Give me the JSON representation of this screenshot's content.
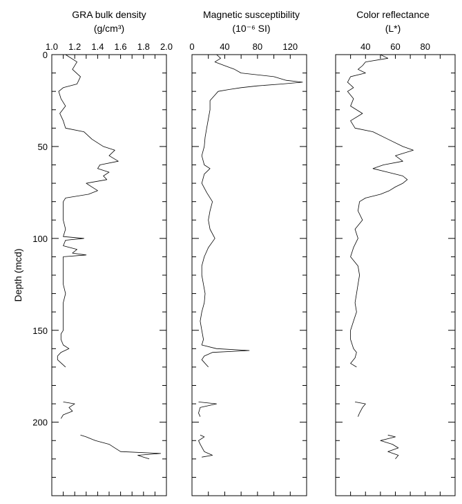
{
  "figure": {
    "ylabel": "Depth (mcd)"
  },
  "chart_data": [
    {
      "type": "line",
      "title": "GRA bulk density",
      "unit": "(g/cm³)",
      "xlim": [
        1.0,
        2.0
      ],
      "xticks": [
        "1.0",
        "1.2",
        "1.4",
        "1.6",
        "1.8",
        "2.0"
      ],
      "ylim": [
        0,
        240
      ],
      "yticks": [
        "0",
        "50",
        "100",
        "150",
        "200"
      ],
      "series": [
        {
          "depth": [
            0,
            4,
            8,
            12,
            16,
            18,
            20,
            24,
            28,
            32,
            36,
            40,
            42,
            46,
            50,
            52,
            55,
            58,
            60,
            62,
            64,
            66,
            68,
            70,
            72,
            74,
            76,
            78,
            80,
            85,
            90,
            95,
            99,
            100,
            101,
            104,
            106,
            108,
            109,
            110,
            115,
            120,
            125,
            130,
            135,
            140,
            145,
            150,
            152,
            155,
            158,
            160,
            162,
            164,
            166,
            170,
            189,
            190,
            192,
            194,
            196,
            198,
            207,
            208,
            210,
            212,
            214,
            216,
            217,
            218,
            219,
            220
          ],
          "values": [
            1.12,
            1.22,
            1.18,
            1.25,
            1.22,
            1.1,
            1.06,
            1.08,
            1.12,
            1.07,
            1.1,
            1.12,
            1.28,
            1.35,
            1.45,
            1.55,
            1.5,
            1.58,
            1.42,
            1.4,
            1.5,
            1.45,
            1.48,
            1.3,
            1.35,
            1.4,
            1.32,
            1.12,
            1.1,
            1.1,
            1.1,
            1.12,
            1.1,
            1.28,
            1.12,
            1.1,
            1.22,
            1.18,
            1.3,
            1.1,
            1.1,
            1.1,
            1.1,
            1.12,
            1.1,
            1.1,
            1.1,
            1.1,
            1.08,
            1.08,
            1.1,
            1.15,
            1.08,
            1.05,
            1.05,
            1.12,
            1.1,
            1.2,
            1.15,
            1.18,
            1.1,
            1.08,
            1.25,
            1.3,
            1.38,
            1.5,
            1.55,
            1.6,
            1.95,
            1.75,
            1.8,
            1.85
          ]
        }
      ]
    },
    {
      "type": "line",
      "title": "Magnetic susceptibility",
      "unit": "(10⁻⁶ SI)",
      "xlim": [
        0,
        140
      ],
      "xticks": [
        "0",
        "40",
        "80",
        "120"
      ],
      "ylim": [
        0,
        240
      ],
      "yticks": [
        "0",
        "50",
        "100",
        "150",
        "200"
      ],
      "series": [
        {
          "depth": [
            0,
            2,
            4,
            6,
            8,
            10,
            12,
            14,
            15,
            16,
            17,
            18,
            19,
            20,
            22,
            25,
            30,
            35,
            40,
            45,
            50,
            55,
            60,
            62,
            65,
            70,
            75,
            80,
            85,
            90,
            95,
            100,
            105,
            110,
            115,
            120,
            125,
            130,
            135,
            140,
            145,
            150,
            155,
            158,
            160,
            161,
            162,
            164,
            166,
            170,
            189,
            190,
            192,
            195,
            197,
            207,
            208,
            210,
            212,
            216,
            218,
            219
          ],
          "values": [
            30,
            35,
            28,
            40,
            52,
            60,
            100,
            115,
            135,
            110,
            80,
            60,
            45,
            32,
            28,
            22,
            22,
            20,
            18,
            16,
            15,
            12,
            15,
            22,
            15,
            12,
            18,
            25,
            22,
            20,
            22,
            28,
            20,
            15,
            12,
            12,
            14,
            16,
            15,
            12,
            10,
            12,
            14,
            12,
            30,
            70,
            25,
            15,
            12,
            20,
            8,
            30,
            10,
            8,
            10,
            10,
            15,
            8,
            10,
            15,
            25,
            12
          ]
        }
      ]
    },
    {
      "type": "line",
      "title": "Color reflectance",
      "unit": "(L*)",
      "xlim": [
        20,
        100
      ],
      "xticks": [
        "40",
        "60",
        "80"
      ],
      "ylim": [
        0,
        240
      ],
      "yticks": [
        "0",
        "50",
        "100",
        "150",
        "200"
      ],
      "series": [
        {
          "depth": [
            0,
            2,
            4,
            6,
            8,
            10,
            12,
            15,
            18,
            20,
            24,
            28,
            32,
            36,
            40,
            42,
            46,
            50,
            52,
            55,
            58,
            60,
            62,
            64,
            66,
            68,
            70,
            72,
            74,
            76,
            78,
            80,
            85,
            90,
            95,
            100,
            105,
            110,
            115,
            120,
            125,
            130,
            135,
            140,
            145,
            150,
            155,
            160,
            162,
            165,
            168,
            170,
            189,
            190,
            192,
            195,
            197,
            207,
            208,
            210,
            212,
            214,
            216,
            218,
            220
          ],
          "values": [
            50,
            55,
            40,
            38,
            35,
            40,
            30,
            28,
            32,
            28,
            32,
            30,
            38,
            30,
            33,
            45,
            55,
            65,
            72,
            60,
            65,
            52,
            45,
            55,
            65,
            68,
            65,
            60,
            56,
            50,
            40,
            36,
            35,
            38,
            33,
            35,
            32,
            30,
            35,
            36,
            35,
            34,
            33,
            34,
            32,
            30,
            30,
            32,
            34,
            33,
            30,
            34,
            33,
            40,
            38,
            36,
            35,
            55,
            60,
            50,
            58,
            62,
            55,
            62,
            60
          ]
        }
      ]
    }
  ]
}
